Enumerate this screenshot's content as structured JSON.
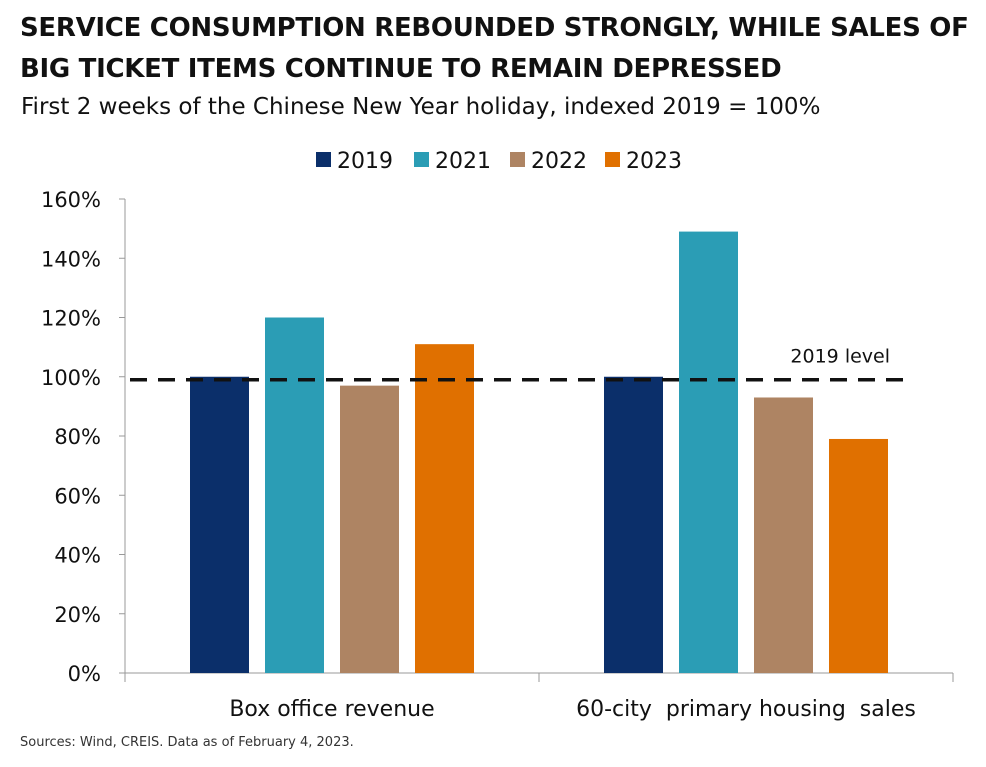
{
  "title": "SERVICE CONSUMPTION REBOUNDED STRONGLY, WHILE SALES OF BIG TICKET ITEMS CONTINUE TO REMAIN DEPRESSED",
  "subtitle": "First 2 weeks of the Chinese New Year holiday, indexed 2019 = 100%",
  "source": "Sources: Wind, CREIS. Data as of February 4, 2023.",
  "colors": {
    "2019": "#0b2f6a",
    "2021": "#2b9db5",
    "2022": "#ae8463",
    "2023": "#e07000",
    "reference_line": "#111111"
  },
  "chart_data": {
    "type": "bar",
    "categories": [
      "Box office revenue",
      "60-city  primary housing  sales"
    ],
    "series": [
      {
        "name": "2019",
        "values": [
          100,
          100
        ]
      },
      {
        "name": "2021",
        "values": [
          120,
          149
        ]
      },
      {
        "name": "2022",
        "values": [
          97,
          93
        ]
      },
      {
        "name": "2023",
        "values": [
          111,
          79
        ]
      }
    ],
    "ylim": [
      0,
      160
    ],
    "yticks": [
      0,
      20,
      40,
      60,
      80,
      100,
      120,
      140,
      160
    ],
    "ytick_suffix": "%",
    "reference_line": {
      "value": 99,
      "label": "2019 level",
      "style": "dashed"
    },
    "legend_position": "top-center",
    "grid": false,
    "xlabel": "",
    "ylabel": ""
  }
}
